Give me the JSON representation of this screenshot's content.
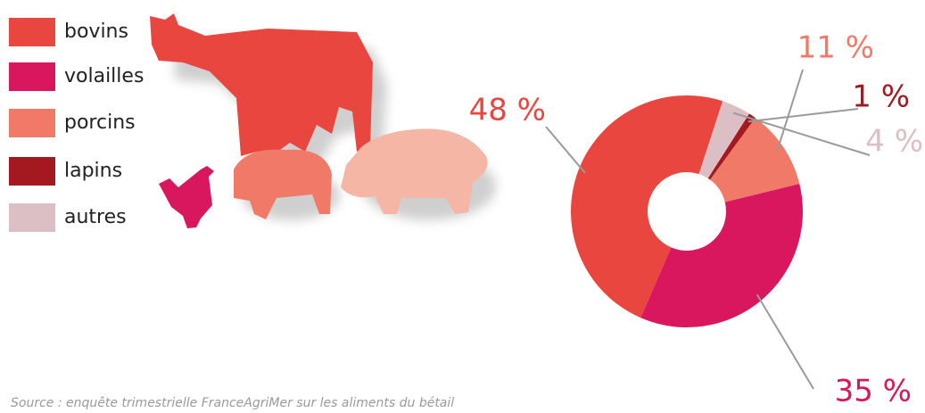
{
  "chart_data": {
    "type": "pie",
    "donut": true,
    "categories": [
      "bovins",
      "volailles",
      "porcins",
      "lapins",
      "autres"
    ],
    "values": [
      48,
      35,
      11,
      1,
      4
    ],
    "value_labels": [
      "48 %",
      "35 %",
      "11 %",
      "1 %",
      "4 %"
    ],
    "colors": [
      "#e8463f",
      "#d9175e",
      "#f07a67",
      "#a3191f",
      "#dcbfc4"
    ],
    "source": "Source : enquête trimestrielle FranceAgriMer sur les aliments du bétail"
  }
}
